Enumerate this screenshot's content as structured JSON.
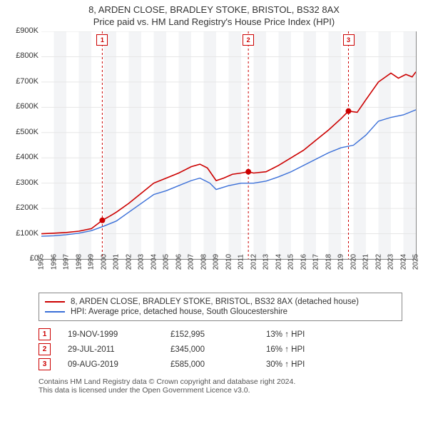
{
  "titles": {
    "line1": "8, ARDEN CLOSE, BRADLEY STOKE, BRISTOL, BS32 8AX",
    "line2": "Price paid vs. HM Land Registry's House Price Index (HPI)"
  },
  "chart": {
    "type": "line",
    "background_color": "#ffffff",
    "grid_color": "#e6e6e6",
    "band_color": "#f3f4f6",
    "axis_color": "#888888",
    "y": {
      "min": 0,
      "max": 900000,
      "step": 100000,
      "labels": [
        "£0",
        "£100K",
        "£200K",
        "£300K",
        "£400K",
        "£500K",
        "£600K",
        "£700K",
        "£800K",
        "£900K"
      ],
      "label_fontsize": 11
    },
    "x": {
      "min": 1995,
      "max": 2025,
      "step": 1,
      "labels": [
        "1995",
        "1996",
        "1997",
        "1998",
        "1999",
        "2000",
        "2001",
        "2002",
        "2003",
        "2004",
        "2005",
        "2006",
        "2007",
        "2008",
        "2009",
        "2010",
        "2011",
        "2012",
        "2013",
        "2014",
        "2015",
        "2016",
        "2017",
        "2018",
        "2019",
        "2020",
        "2021",
        "2022",
        "2023",
        "2024",
        "2025"
      ],
      "label_fontsize": 10
    },
    "series": [
      {
        "key": "property",
        "label": "8, ARDEN CLOSE, BRADLEY STOKE, BRISTOL, BS32 8AX (detached house)",
        "color": "#cc0000",
        "line_width": 1.6,
        "points": [
          [
            1995.0,
            100000
          ],
          [
            1996.0,
            102000
          ],
          [
            1997.0,
            105000
          ],
          [
            1998.0,
            110000
          ],
          [
            1999.0,
            120000
          ],
          [
            1999.88,
            152995
          ],
          [
            2000.5,
            170000
          ],
          [
            2001.0,
            185000
          ],
          [
            2002.0,
            220000
          ],
          [
            2003.0,
            260000
          ],
          [
            2004.0,
            300000
          ],
          [
            2005.0,
            320000
          ],
          [
            2006.0,
            340000
          ],
          [
            2007.0,
            365000
          ],
          [
            2007.7,
            375000
          ],
          [
            2008.3,
            360000
          ],
          [
            2009.0,
            310000
          ],
          [
            2009.6,
            320000
          ],
          [
            2010.3,
            335000
          ],
          [
            2011.0,
            340000
          ],
          [
            2011.58,
            345000
          ],
          [
            2012.0,
            340000
          ],
          [
            2013.0,
            345000
          ],
          [
            2014.0,
            370000
          ],
          [
            2015.0,
            400000
          ],
          [
            2016.0,
            430000
          ],
          [
            2017.0,
            470000
          ],
          [
            2018.0,
            510000
          ],
          [
            2019.0,
            555000
          ],
          [
            2019.6,
            585000
          ],
          [
            2020.3,
            580000
          ],
          [
            2021.0,
            630000
          ],
          [
            2022.0,
            700000
          ],
          [
            2023.0,
            735000
          ],
          [
            2023.6,
            715000
          ],
          [
            2024.2,
            730000
          ],
          [
            2024.7,
            720000
          ],
          [
            2025.0,
            740000
          ]
        ]
      },
      {
        "key": "hpi",
        "label": "HPI: Average price, detached house, South Gloucestershire",
        "color": "#3a6fd8",
        "line_width": 1.4,
        "points": [
          [
            1995.0,
            90000
          ],
          [
            1996.0,
            92000
          ],
          [
            1997.0,
            96000
          ],
          [
            1998.0,
            102000
          ],
          [
            1999.0,
            112000
          ],
          [
            2000.0,
            130000
          ],
          [
            2001.0,
            150000
          ],
          [
            2002.0,
            185000
          ],
          [
            2003.0,
            220000
          ],
          [
            2004.0,
            255000
          ],
          [
            2005.0,
            270000
          ],
          [
            2006.0,
            290000
          ],
          [
            2007.0,
            310000
          ],
          [
            2007.7,
            320000
          ],
          [
            2008.5,
            300000
          ],
          [
            2009.0,
            275000
          ],
          [
            2010.0,
            290000
          ],
          [
            2011.0,
            300000
          ],
          [
            2012.0,
            300000
          ],
          [
            2013.0,
            308000
          ],
          [
            2014.0,
            325000
          ],
          [
            2015.0,
            345000
          ],
          [
            2016.0,
            370000
          ],
          [
            2017.0,
            395000
          ],
          [
            2018.0,
            420000
          ],
          [
            2019.0,
            440000
          ],
          [
            2020.0,
            450000
          ],
          [
            2021.0,
            490000
          ],
          [
            2022.0,
            545000
          ],
          [
            2023.0,
            560000
          ],
          [
            2024.0,
            570000
          ],
          [
            2025.0,
            590000
          ]
        ]
      }
    ],
    "sale_markers": [
      {
        "n": "1",
        "x": 1999.88,
        "y": 152995,
        "dot_color": "#cc0000"
      },
      {
        "n": "2",
        "x": 2011.58,
        "y": 345000,
        "dot_color": "#cc0000"
      },
      {
        "n": "3",
        "x": 2019.6,
        "y": 585000,
        "dot_color": "#cc0000"
      }
    ],
    "dashed_line_color": "#cc0000"
  },
  "legend": {
    "rows": [
      {
        "color": "#cc0000",
        "text": "8, ARDEN CLOSE, BRADLEY STOKE, BRISTOL, BS32 8AX (detached house)"
      },
      {
        "color": "#3a6fd8",
        "text": "HPI: Average price, detached house, South Gloucestershire"
      }
    ]
  },
  "sales_table": {
    "rows": [
      {
        "n": "1",
        "date": "19-NOV-1999",
        "price": "£152,995",
        "delta": "13% ↑ HPI"
      },
      {
        "n": "2",
        "date": "29-JUL-2011",
        "price": "£345,000",
        "delta": "16% ↑ HPI"
      },
      {
        "n": "3",
        "date": "09-AUG-2019",
        "price": "£585,000",
        "delta": "30% ↑ HPI"
      }
    ]
  },
  "footer": {
    "line1": "Contains HM Land Registry data © Crown copyright and database right 2024.",
    "line2": "This data is licensed under the Open Government Licence v3.0."
  }
}
